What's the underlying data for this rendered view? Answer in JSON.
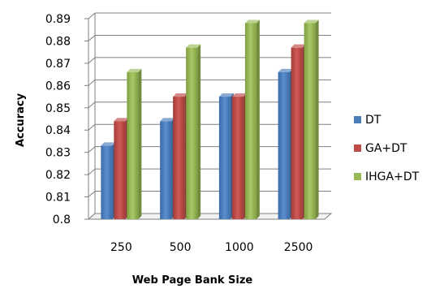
{
  "chart_data": {
    "type": "bar",
    "title": "",
    "xlabel": "Web Page  Bank Size",
    "ylabel": "Accuracy",
    "categories": [
      "250",
      "500",
      "1000",
      "2500"
    ],
    "series": [
      {
        "name": "DT",
        "values": [
          0.833,
          0.844,
          0.855,
          0.866
        ],
        "color": "#4a7ebb"
      },
      {
        "name": "GA+DT",
        "values": [
          0.844,
          0.855,
          0.855,
          0.877
        ],
        "color": "#be4b48"
      },
      {
        "name": "IHGA+DT",
        "values": [
          0.866,
          0.877,
          0.888,
          0.888
        ],
        "color": "#98b954"
      }
    ],
    "ylim": [
      0.8,
      0.89
    ],
    "yticks": [
      "0.8",
      "0.81",
      "0.82",
      "0.83",
      "0.84",
      "0.85",
      "0.86",
      "0.87",
      "0.88",
      "0.89"
    ],
    "grid": true,
    "legend_position": "right",
    "style": "3d-clustered-column"
  }
}
